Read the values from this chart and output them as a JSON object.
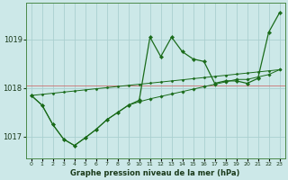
{
  "title": "Graphe pression niveau de la mer (hPa)",
  "bg_color": "#cce8e8",
  "grid_color": "#aacfcf",
  "line_color": "#1a6b1a",
  "x_labels": [
    "0",
    "1",
    "2",
    "3",
    "4",
    "5",
    "6",
    "7",
    "8",
    "9",
    "10",
    "11",
    "12",
    "13",
    "14",
    "15",
    "16",
    "17",
    "18",
    "19",
    "20",
    "21",
    "22",
    "23"
  ],
  "ylim": [
    1016.55,
    1019.75
  ],
  "yticks": [
    1017,
    1018,
    1019
  ],
  "hours": [
    0,
    1,
    2,
    3,
    4,
    5,
    6,
    7,
    8,
    9,
    10,
    11,
    12,
    13,
    14,
    15,
    16,
    17,
    18,
    19,
    20,
    21,
    22,
    23
  ],
  "line1": [
    1017.85,
    1017.65,
    1017.25,
    1016.95,
    1016.82,
    1016.98,
    1017.15,
    1017.35,
    1017.5,
    1017.65,
    1017.75,
    1019.05,
    1018.65,
    1019.05,
    1018.75,
    1018.6,
    1018.55,
    1018.1,
    1018.15,
    1018.15,
    1018.1,
    1018.2,
    1019.15,
    1019.55
  ],
  "line2": [
    1017.85,
    1017.65,
    1017.25,
    1016.95,
    1016.82,
    1016.98,
    1017.15,
    1017.35,
    1017.5,
    1017.65,
    1017.72,
    1017.78,
    1017.83,
    1017.88,
    1017.93,
    1017.98,
    1018.03,
    1018.08,
    1018.13,
    1018.18,
    1018.18,
    1018.23,
    1018.28,
    1018.38
  ],
  "hline": 1018.05,
  "figsize": [
    3.2,
    2.0
  ],
  "dpi": 100
}
